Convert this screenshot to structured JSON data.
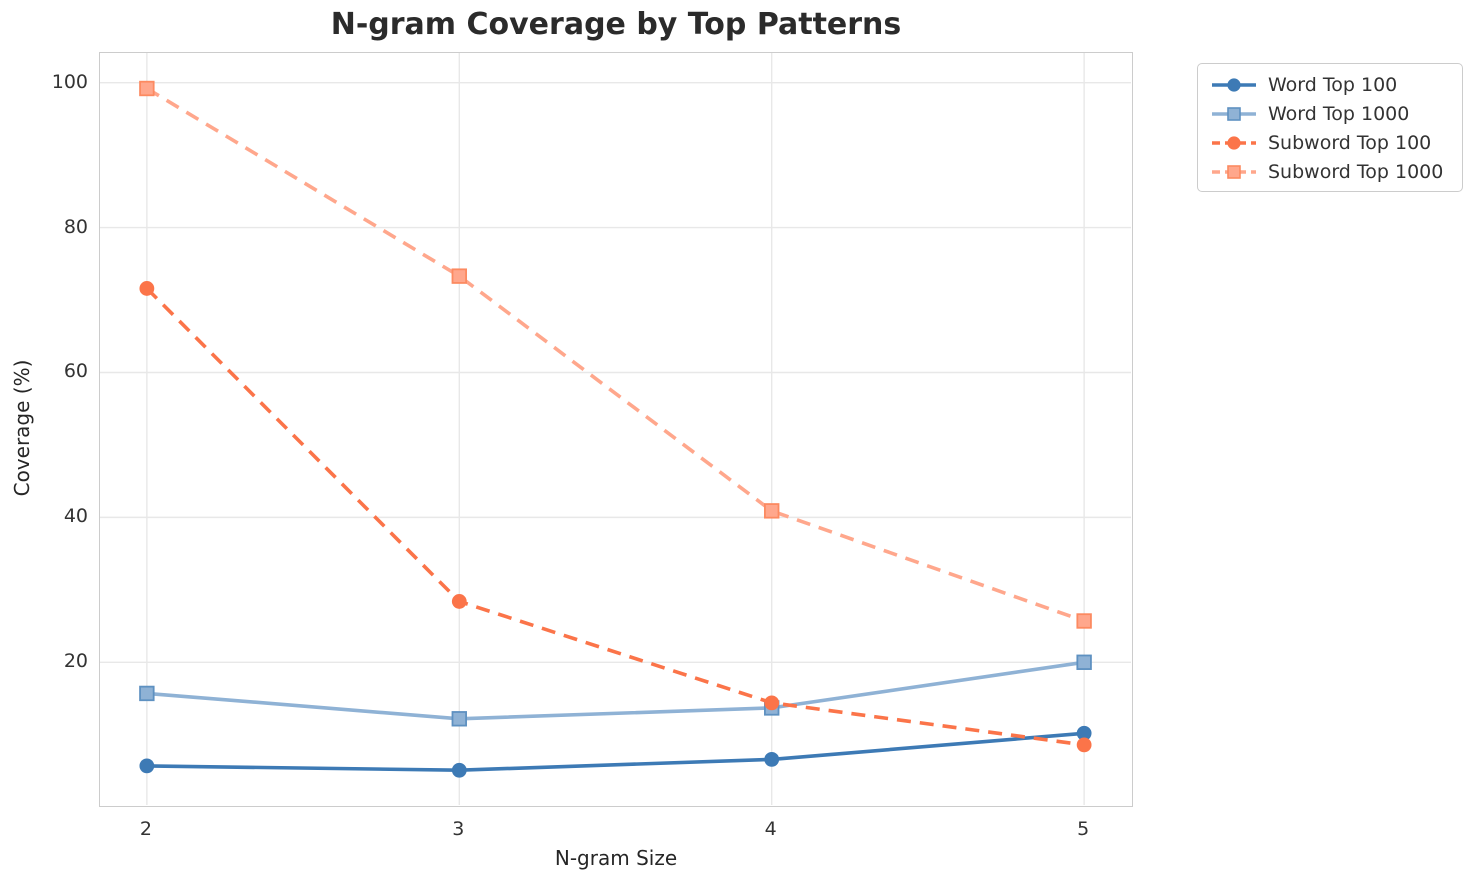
{
  "chart_data": {
    "type": "line",
    "title": "N-gram Coverage by Top Patterns",
    "xlabel": "N-gram Size",
    "ylabel": "Coverage (%)",
    "x": [
      2,
      3,
      4,
      5
    ],
    "xticks": [
      "2",
      "3",
      "4",
      "5"
    ],
    "yticks": [
      20,
      40,
      60,
      80,
      100
    ],
    "xlim": [
      1.85,
      5.15
    ],
    "ylim": [
      0.3,
      104.1
    ],
    "grid": true,
    "legend_position": "outside-top-right",
    "series": [
      {
        "name": "Word Top 100",
        "values": [
          5.7,
          5.1,
          6.6,
          10.2
        ],
        "color": "#3d7ab5",
        "marker": "circle",
        "line_style": "solid"
      },
      {
        "name": "Word Top 1000",
        "values": [
          15.7,
          12.2,
          13.7,
          20.0
        ],
        "color": "#8fb2d5",
        "edge_color": "#5e91c1",
        "marker": "square",
        "line_style": "solid"
      },
      {
        "name": "Subword Top 100",
        "values": [
          71.6,
          28.4,
          14.4,
          8.6
        ],
        "color": "#fb7449",
        "marker": "circle",
        "line_style": "dashed"
      },
      {
        "name": "Subword Top 1000",
        "values": [
          99.2,
          73.3,
          40.9,
          25.7
        ],
        "color": "#ffa78c",
        "edge_color": "#fc8a61",
        "marker": "square",
        "line_style": "dashed"
      }
    ]
  },
  "palette": {
    "background": "#ffffff",
    "grid": "#e8e8e8",
    "spine": "#cccccc",
    "tick_text": "#333333",
    "label_text": "#262626",
    "title_text": "#2b2b2b"
  }
}
